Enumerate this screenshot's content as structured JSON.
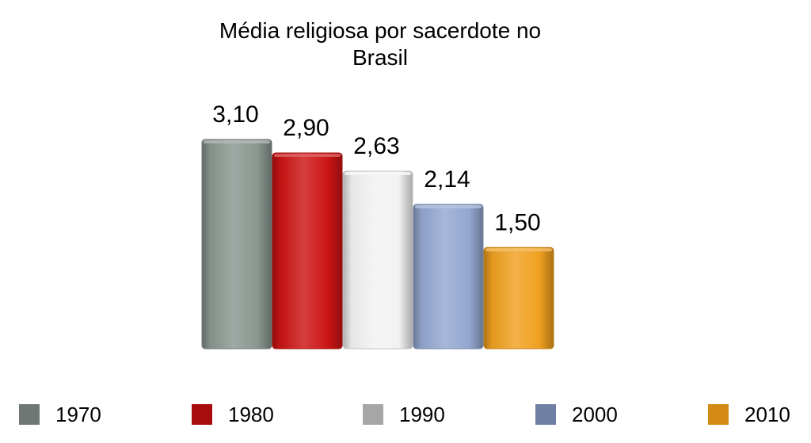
{
  "chart_data": {
    "type": "bar",
    "title": "Média religiosa por sacerdote no Brasil",
    "title_lines": [
      "Média religiosa por sacerdote no",
      "Brasil"
    ],
    "categories": [
      "1970",
      "1980",
      "1990",
      "2000",
      "2010"
    ],
    "values": [
      3.1,
      2.9,
      2.63,
      2.14,
      1.5
    ],
    "value_labels": [
      "3,10",
      "2,90",
      "2,63",
      "2,14",
      "1,50"
    ],
    "colors": [
      "#8a9690",
      "#cc1414",
      "#f2f2f2",
      "#93a7d0",
      "#f0a020"
    ],
    "legend_colors": [
      "#6e7773",
      "#a80d0d",
      "#a6a6a6",
      "#6f7fa3",
      "#d48b16"
    ],
    "xlabel": "",
    "ylabel": "",
    "ylim": [
      0,
      3.1
    ],
    "grid": false,
    "legend_position": "bottom"
  }
}
